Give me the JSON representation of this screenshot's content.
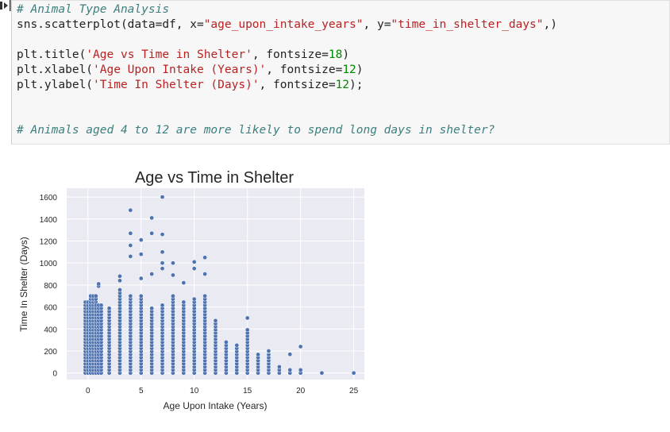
{
  "code_cell": {
    "comment_line": "# Animal Type Analysis",
    "call_prefix": "sns.scatterplot(data=df, x=",
    "x_arg": "\"age_upon_intake_years\"",
    "y_sep": ", y=",
    "y_arg": "\"time_in_shelter_days\"",
    "call_suffix": ",)",
    "title_fn": "plt.title(",
    "title_str": "'Age vs Time in Shelter'",
    "title_kw": ", fontsize=",
    "title_size": "18",
    "xlabel_fn": "plt.xlabel(",
    "xlabel_str": "'Age Upon Intake (Years)'",
    "xlabel_size": "12",
    "ylabel_fn": "plt.ylabel(",
    "ylabel_str": "'Time In Shelter (Days)'",
    "ylabel_size": "12",
    "question_comment": "# Animals aged 4 to 12 are more likely to spend long days in shelter?"
  },
  "chart_data": {
    "type": "scatter",
    "title": "Age vs Time in Shelter",
    "xlabel": "Age Upon Intake (Years)",
    "ylabel": "Time In Shelter (Days)",
    "xlim": [
      -2,
      26
    ],
    "ylim": [
      -60,
      1680
    ],
    "xticks": [
      0,
      5,
      10,
      15,
      20,
      25
    ],
    "yticks": [
      0,
      200,
      400,
      600,
      800,
      1000,
      1200,
      1400,
      1600
    ],
    "grid": true,
    "background": "#eaeaf2",
    "point_color": "#4c72b0",
    "point_edge": "#ffffff",
    "columns": [
      {
        "x": 0,
        "max": 650,
        "outliers": []
      },
      {
        "x": 0.5,
        "max": 700,
        "outliers": []
      },
      {
        "x": 1,
        "max": 620,
        "outliers": [
          790,
          810
        ]
      },
      {
        "x": 2,
        "max": 600,
        "outliers": []
      },
      {
        "x": 3,
        "max": 760,
        "outliers": [
          840,
          880
        ]
      },
      {
        "x": 4,
        "max": 720,
        "outliers": [
          1060,
          1160,
          1270,
          1480
        ]
      },
      {
        "x": 5,
        "max": 700,
        "outliers": [
          860,
          1080,
          1210
        ]
      },
      {
        "x": 6,
        "max": 600,
        "outliers": [
          900,
          1270,
          1410
        ]
      },
      {
        "x": 7,
        "max": 640,
        "outliers": [
          950,
          1000,
          1100,
          1260,
          1600
        ]
      },
      {
        "x": 8,
        "max": 700,
        "outliers": [
          890,
          1000
        ]
      },
      {
        "x": 9,
        "max": 650,
        "outliers": [
          820
        ]
      },
      {
        "x": 10,
        "max": 680,
        "outliers": [
          950,
          1010
        ]
      },
      {
        "x": 11,
        "max": 700,
        "outliers": [
          900,
          1050
        ]
      },
      {
        "x": 12,
        "max": 490,
        "outliers": []
      },
      {
        "x": 13,
        "max": 300,
        "outliers": []
      },
      {
        "x": 14,
        "max": 270,
        "outliers": []
      },
      {
        "x": 15,
        "max": 400,
        "outliers": [
          500
        ]
      },
      {
        "x": 16,
        "max": 180,
        "outliers": []
      },
      {
        "x": 17,
        "max": 200,
        "outliers": [
          200
        ]
      },
      {
        "x": 18,
        "max": 60,
        "outliers": []
      },
      {
        "x": 19,
        "max": 30,
        "outliers": [
          170
        ]
      },
      {
        "x": 20,
        "max": 30,
        "outliers": [
          240
        ]
      },
      {
        "x": 22,
        "max": 0,
        "outliers": []
      },
      {
        "x": 25,
        "max": 0,
        "outliers": []
      }
    ]
  }
}
